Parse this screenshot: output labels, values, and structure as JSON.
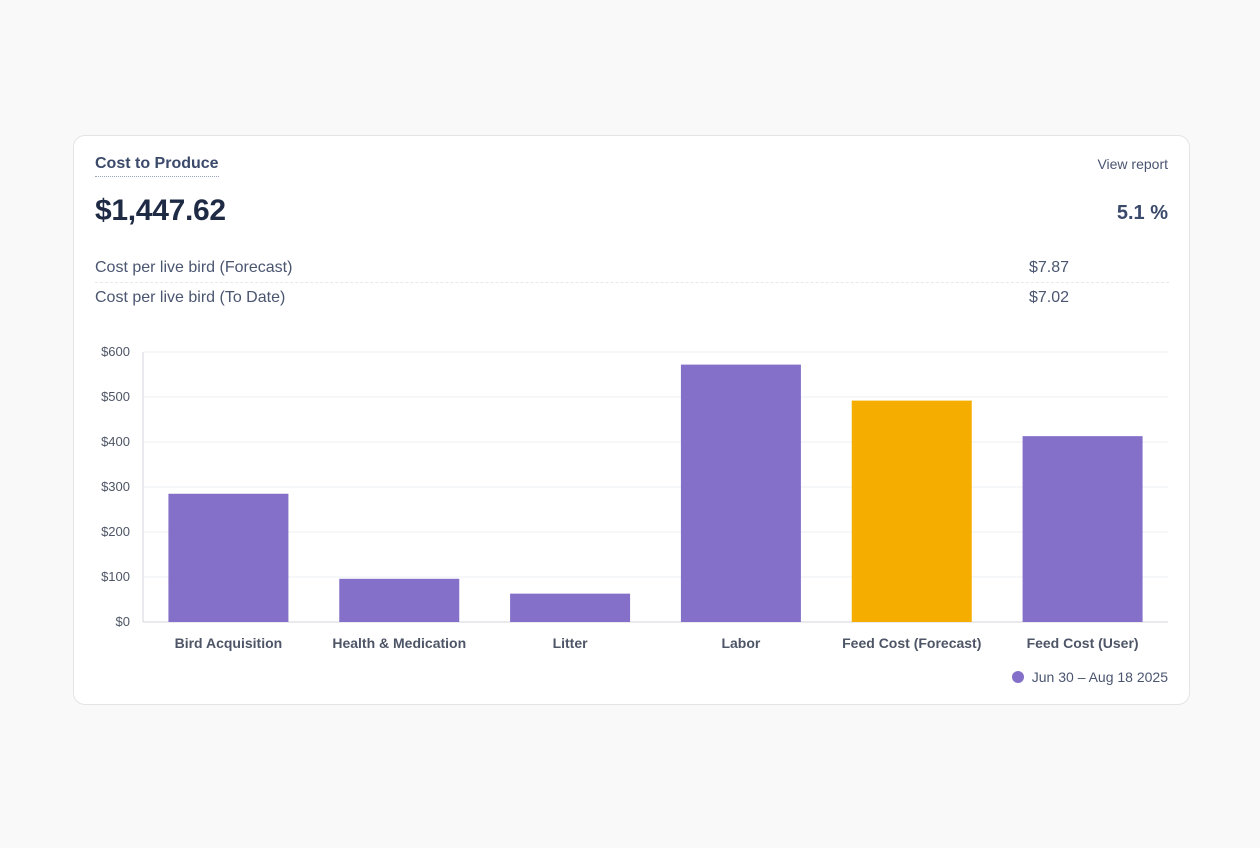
{
  "card": {
    "title": "Cost to Produce",
    "view_report_label": "View report",
    "total_value": "$1,447.62",
    "change_value": "5.1 %",
    "metrics": [
      {
        "label": "Cost per live bird (Forecast)",
        "value": "$7.87"
      },
      {
        "label": "Cost per live bird (To Date)",
        "value": "$7.02"
      }
    ]
  },
  "legend": {
    "label": "Jun 30 – Aug 18 2025",
    "color": "#8470c8"
  },
  "chart_data": {
    "type": "bar",
    "categories": [
      "Bird Acquisition",
      "Health & Medication",
      "Litter",
      "Labor",
      "Feed Cost (Forecast)",
      "Feed Cost (User)"
    ],
    "values": [
      285,
      96,
      63,
      572,
      492,
      413
    ],
    "bar_colors": [
      "#8470c8",
      "#8470c8",
      "#8470c8",
      "#8470c8",
      "#f5ae00",
      "#8470c8"
    ],
    "highlight_color": "#f5ae00",
    "ylim": [
      0,
      600
    ],
    "yticks": [
      0,
      100,
      200,
      300,
      400,
      500,
      600
    ],
    "ytick_labels": [
      "$0",
      "$100",
      "$200",
      "$300",
      "$400",
      "$500",
      "$600"
    ],
    "grid": true,
    "title": "",
    "xlabel": "",
    "ylabel": ""
  }
}
